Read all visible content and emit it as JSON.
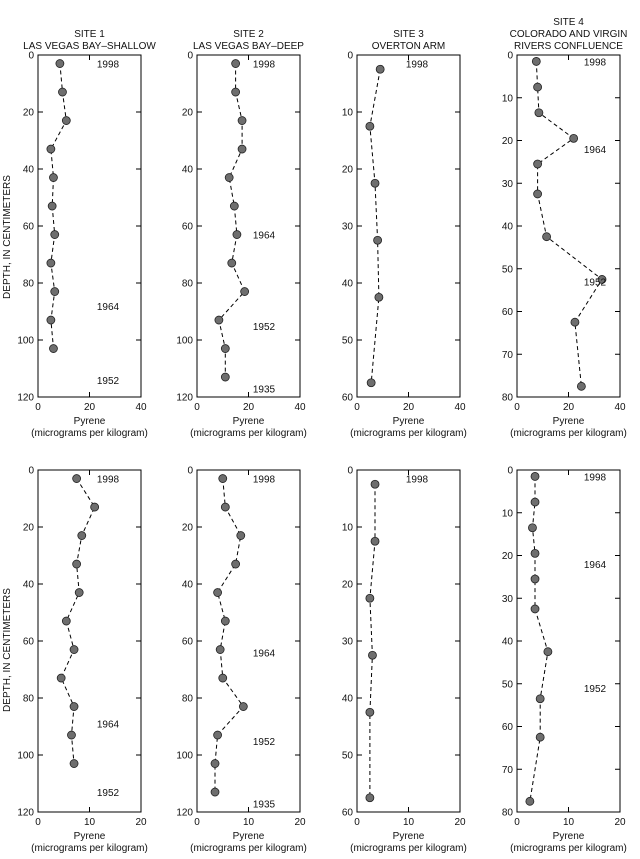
{
  "figure": {
    "y_axis_label": "DEPTH, IN CENTIMETERS"
  },
  "chart_data": [
    {
      "type": "scatter",
      "row": 0,
      "col": 0,
      "title_lines": [
        "SITE 1",
        "LAS VEGAS BAY–SHALLOW"
      ],
      "xlabel_lines": [
        "Pyrene",
        "(micrograms per kilogram)"
      ],
      "xlim": [
        0,
        40
      ],
      "ylim": [
        120,
        0
      ],
      "xticks": [
        "0",
        "20",
        "40"
      ],
      "yticks": [
        "0",
        "20",
        "40",
        "60",
        "80",
        "100",
        "120"
      ],
      "xtick_values": [
        0,
        20,
        40
      ],
      "ytick_values": [
        0,
        20,
        40,
        60,
        80,
        100,
        120
      ],
      "annotations": [
        {
          "text": "1998",
          "depth": 3
        },
        {
          "text": "1964",
          "depth": 88
        },
        {
          "text": "1952",
          "depth": 114
        }
      ],
      "points": [
        [
          8.5,
          3
        ],
        [
          9.5,
          13
        ],
        [
          11,
          23
        ],
        [
          5,
          33
        ],
        [
          6,
          43
        ],
        [
          5.5,
          53
        ],
        [
          6.5,
          63
        ],
        [
          5,
          73
        ],
        [
          6.5,
          83
        ],
        [
          5,
          93
        ],
        [
          6,
          103
        ]
      ]
    },
    {
      "type": "scatter",
      "row": 0,
      "col": 1,
      "title_lines": [
        "SITE 2",
        "LAS VEGAS BAY–DEEP"
      ],
      "xlabel_lines": [
        "Pyrene",
        "(micrograms per kilogram)"
      ],
      "xlim": [
        0,
        40
      ],
      "ylim": [
        120,
        0
      ],
      "xticks": [
        "0",
        "20",
        "40"
      ],
      "yticks": [
        "0",
        "20",
        "40",
        "60",
        "80",
        "100",
        "120"
      ],
      "xtick_values": [
        0,
        20,
        40
      ],
      "ytick_values": [
        0,
        20,
        40,
        60,
        80,
        100,
        120
      ],
      "annotations": [
        {
          "text": "1998",
          "depth": 3
        },
        {
          "text": "1964",
          "depth": 63
        },
        {
          "text": "1952",
          "depth": 95
        },
        {
          "text": "1935",
          "depth": 117
        }
      ],
      "points": [
        [
          15,
          3
        ],
        [
          15,
          13
        ],
        [
          17.5,
          23
        ],
        [
          17.5,
          33
        ],
        [
          12.5,
          43
        ],
        [
          14.5,
          53
        ],
        [
          15.5,
          63
        ],
        [
          13.5,
          73
        ],
        [
          18.5,
          83
        ],
        [
          8.5,
          93
        ],
        [
          11,
          103
        ],
        [
          11,
          113
        ]
      ]
    },
    {
      "type": "scatter",
      "row": 0,
      "col": 2,
      "title_lines": [
        "SITE 3",
        "OVERTON ARM"
      ],
      "xlabel_lines": [
        "Pyrene",
        "(micrograms per kilogram)"
      ],
      "xlim": [
        0,
        40
      ],
      "ylim": [
        60,
        0
      ],
      "xticks": [
        "0",
        "20",
        "40"
      ],
      "yticks": [
        "0",
        "10",
        "20",
        "30",
        "40",
        "50",
        "60"
      ],
      "xtick_values": [
        0,
        20,
        40
      ],
      "ytick_values": [
        0,
        10,
        20,
        30,
        40,
        50,
        60
      ],
      "annotations": [
        {
          "text": "1998",
          "depth": 1.5
        }
      ],
      "points": [
        [
          9,
          2.5
        ],
        [
          5,
          12.5
        ],
        [
          7,
          22.5
        ],
        [
          8,
          32.5
        ],
        [
          8.5,
          42.5
        ],
        [
          5.5,
          57.5
        ]
      ]
    },
    {
      "type": "scatter",
      "row": 0,
      "col": 3,
      "title_lines": [
        "SITE 4",
        "COLORADO AND VIRGIN",
        "RIVERS CONFLUENCE"
      ],
      "xlabel_lines": [
        "Pyrene",
        "(micrograms per kilogram)"
      ],
      "xlim": [
        0,
        40
      ],
      "ylim": [
        80,
        0
      ],
      "xticks": [
        "0",
        "20",
        "40"
      ],
      "yticks": [
        "0",
        "10",
        "20",
        "30",
        "40",
        "50",
        "60",
        "70",
        "80"
      ],
      "xtick_values": [
        0,
        20,
        40
      ],
      "ytick_values": [
        0,
        10,
        20,
        30,
        40,
        50,
        60,
        70,
        80
      ],
      "annotations": [
        {
          "text": "1998",
          "depth": 1.5
        },
        {
          "text": "1964",
          "depth": 22
        },
        {
          "text": "1952",
          "depth": 53
        }
      ],
      "points": [
        [
          7.5,
          1.5
        ],
        [
          8,
          7.5
        ],
        [
          8.5,
          13.5
        ],
        [
          22,
          19.5
        ],
        [
          8,
          25.5
        ],
        [
          8,
          32.5
        ],
        [
          11.5,
          42.5
        ],
        [
          33,
          52.5
        ],
        [
          22.5,
          62.5
        ],
        [
          25,
          77.5
        ]
      ]
    },
    {
      "type": "scatter",
      "row": 1,
      "col": 0,
      "title_lines": [],
      "xlabel_lines": [
        "Pyrene",
        "(micrograms per kilogram)"
      ],
      "xlim": [
        0,
        20
      ],
      "ylim": [
        120,
        0
      ],
      "xticks": [
        "0",
        "10",
        "20"
      ],
      "yticks": [
        "0",
        "20",
        "40",
        "60",
        "80",
        "100",
        "120"
      ],
      "xtick_values": [
        0,
        10,
        20
      ],
      "ytick_values": [
        0,
        20,
        40,
        60,
        80,
        100,
        120
      ],
      "annotations": [
        {
          "text": "1998",
          "depth": 3
        },
        {
          "text": "1964",
          "depth": 89
        },
        {
          "text": "1952",
          "depth": 113
        }
      ],
      "points": [
        [
          7.5,
          3
        ],
        [
          11,
          13
        ],
        [
          8.5,
          23
        ],
        [
          7.5,
          33
        ],
        [
          8,
          43
        ],
        [
          5.5,
          53
        ],
        [
          7,
          63
        ],
        [
          4.5,
          73
        ],
        [
          7,
          83
        ],
        [
          6.5,
          93
        ],
        [
          7,
          103
        ]
      ]
    },
    {
      "type": "scatter",
      "row": 1,
      "col": 1,
      "title_lines": [],
      "xlabel_lines": [
        "Pyrene",
        "(micrograms per kilogram)"
      ],
      "xlim": [
        0,
        20
      ],
      "ylim": [
        120,
        0
      ],
      "xticks": [
        "0",
        "10",
        "20"
      ],
      "yticks": [
        "0",
        "20",
        "40",
        "60",
        "80",
        "100",
        "120"
      ],
      "xtick_values": [
        0,
        10,
        20
      ],
      "ytick_values": [
        0,
        20,
        40,
        60,
        80,
        100,
        120
      ],
      "annotations": [
        {
          "text": "1998",
          "depth": 3
        },
        {
          "text": "1964",
          "depth": 64
        },
        {
          "text": "1952",
          "depth": 95
        },
        {
          "text": "1935",
          "depth": 117
        }
      ],
      "points": [
        [
          5,
          3
        ],
        [
          5.5,
          13
        ],
        [
          8.5,
          23
        ],
        [
          7.5,
          33
        ],
        [
          4,
          43
        ],
        [
          5.5,
          53
        ],
        [
          4.5,
          63
        ],
        [
          5,
          73
        ],
        [
          9,
          83
        ],
        [
          4,
          93
        ],
        [
          3.5,
          103
        ],
        [
          3.5,
          113
        ]
      ]
    },
    {
      "type": "scatter",
      "row": 1,
      "col": 2,
      "title_lines": [],
      "xlabel_lines": [
        "Pyrene",
        "(micrograms per kilogram)"
      ],
      "xlim": [
        0,
        20
      ],
      "ylim": [
        60,
        0
      ],
      "xticks": [
        "0",
        "10",
        "20"
      ],
      "yticks": [
        "0",
        "10",
        "20",
        "30",
        "40",
        "50",
        "60"
      ],
      "xtick_values": [
        0,
        10,
        20
      ],
      "ytick_values": [
        0,
        10,
        20,
        30,
        40,
        50,
        60
      ],
      "annotations": [
        {
          "text": "1998",
          "depth": 1.5
        }
      ],
      "points": [
        [
          3.5,
          2.5
        ],
        [
          3.5,
          12.5
        ],
        [
          2.5,
          22.5
        ],
        [
          3,
          32.5
        ],
        [
          2.5,
          42.5
        ],
        [
          2.5,
          57.5
        ]
      ]
    },
    {
      "type": "scatter",
      "row": 1,
      "col": 3,
      "title_lines": [],
      "xlabel_lines": [
        "Pyrene",
        "(micrograms per kilogram)"
      ],
      "xlim": [
        0,
        20
      ],
      "ylim": [
        80,
        0
      ],
      "xticks": [
        "0",
        "10",
        "20"
      ],
      "yticks": [
        "0",
        "10",
        "20",
        "30",
        "40",
        "50",
        "60",
        "70",
        "80"
      ],
      "xtick_values": [
        0,
        10,
        20
      ],
      "ytick_values": [
        0,
        10,
        20,
        30,
        40,
        50,
        60,
        70,
        80
      ],
      "annotations": [
        {
          "text": "1998",
          "depth": 1.5
        },
        {
          "text": "1964",
          "depth": 22
        },
        {
          "text": "1952",
          "depth": 51
        }
      ],
      "points": [
        [
          3.5,
          1.5
        ],
        [
          3.5,
          7.5
        ],
        [
          3,
          13.5
        ],
        [
          3.5,
          19.5
        ],
        [
          3.5,
          25.5
        ],
        [
          3.5,
          32.5
        ],
        [
          6,
          42.5
        ],
        [
          4.5,
          53.5
        ],
        [
          4.5,
          62.5
        ],
        [
          2.5,
          77.5
        ]
      ]
    }
  ]
}
